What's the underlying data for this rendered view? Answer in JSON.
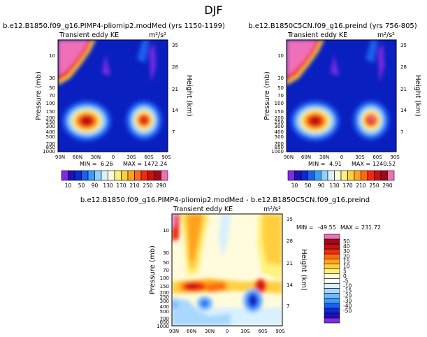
{
  "figure": {
    "season": "DJF"
  },
  "colors": {
    "seq": [
      "#7f2be3",
      "#1f0fb8",
      "#0a2ad0",
      "#1a5ff0",
      "#3a9cf8",
      "#8fd0ff",
      "#d8f0ff",
      "#fffbdc",
      "#fff17a",
      "#ffcf40",
      "#ffa21e",
      "#ff6a10",
      "#ee2b10",
      "#c80f14",
      "#a00818",
      "#f070b8"
    ],
    "div": [
      "#7f2be3",
      "#1f0fb8",
      "#0a2ad0",
      "#1a5ff0",
      "#3a9cf8",
      "#6fb8ff",
      "#a8d8ff",
      "#d8f0ff",
      "#ffffff",
      "#fffbdc",
      "#fff17a",
      "#ffd040",
      "#ffa21e",
      "#ff6a10",
      "#ee2b10",
      "#c80f14",
      "#a00818",
      "#f070b8"
    ]
  },
  "chart_data": [
    {
      "type": "heatmap",
      "title": "b.e12.B1850.f09_g16.PIMP4-pliomip2.modMed (yrs 1150-1199)",
      "subtitle_left": "Transient eddy KE",
      "subtitle_right": "m²/s²",
      "ylabel": "Pressure (mb)",
      "ylabel_right": "Height (km)",
      "x_ticks": [
        "90N",
        "60N",
        "30N",
        "0",
        "30S",
        "60S",
        "90S"
      ],
      "y_ticks": [
        "10",
        "30",
        "50",
        "70",
        "100",
        "150",
        "200",
        "250",
        "300",
        "400",
        "500",
        "700",
        "850",
        "1000"
      ],
      "y_ticks_right": [
        "35",
        "28",
        "21",
        "14",
        "7"
      ],
      "min_label": "MIN =",
      "min_value": "6.26",
      "max_label": "MAX =",
      "max_value": "1472.24",
      "colorbar_labels": [
        "10",
        "50",
        "90",
        "130",
        "170",
        "210",
        "250",
        "290"
      ]
    },
    {
      "type": "heatmap",
      "title": "b.e12.B1850C5CN.f09_g16.preind (yrs 756-805)",
      "subtitle_left": "Transient eddy KE",
      "subtitle_right": "m²/s²",
      "ylabel": "Pressure (mb)",
      "ylabel_right": "Height (km)",
      "x_ticks": [
        "90N",
        "60N",
        "30N",
        "0",
        "30S",
        "60S",
        "90S"
      ],
      "y_ticks": [
        "10",
        "30",
        "50",
        "70",
        "100",
        "150",
        "200",
        "250",
        "300",
        "400",
        "500",
        "700",
        "850",
        "1000"
      ],
      "y_ticks_right": [
        "35",
        "28",
        "21",
        "14",
        "7"
      ],
      "min_label": "MIN =",
      "min_value": "4.91",
      "max_label": "MAX =",
      "max_value": "1240.52",
      "colorbar_labels": [
        "10",
        "50",
        "90",
        "130",
        "170",
        "210",
        "250",
        "290"
      ]
    },
    {
      "type": "heatmap",
      "title": "b.e12.B1850.f09_g16.PIMP4-pliomip2.modMed - b.e12.B1850C5CN.f09_g16.preind",
      "subtitle_left": "Transient eddy KE",
      "subtitle_right": "m²/s²",
      "ylabel": "Pressure (mb)",
      "ylabel_right": "Height (km)",
      "x_ticks": [
        "90N",
        "60N",
        "30N",
        "0",
        "30S",
        "60S",
        "90S"
      ],
      "y_ticks": [
        "10",
        "30",
        "50",
        "70",
        "100",
        "150",
        "200",
        "250",
        "300",
        "400",
        "500",
        "700",
        "850",
        "1000"
      ],
      "y_ticks_right": [
        "35",
        "28",
        "21",
        "14",
        "7"
      ],
      "min_label": "MIN =",
      "min_value": "-49.55",
      "max_label": "MAX =",
      "max_value": "231.72",
      "colorbar_labels": [
        "50",
        "40",
        "30",
        "20",
        "15",
        "10",
        "5",
        "0",
        "-5",
        "-10",
        "-15",
        "-20",
        "-30",
        "-40",
        "-50"
      ]
    }
  ]
}
